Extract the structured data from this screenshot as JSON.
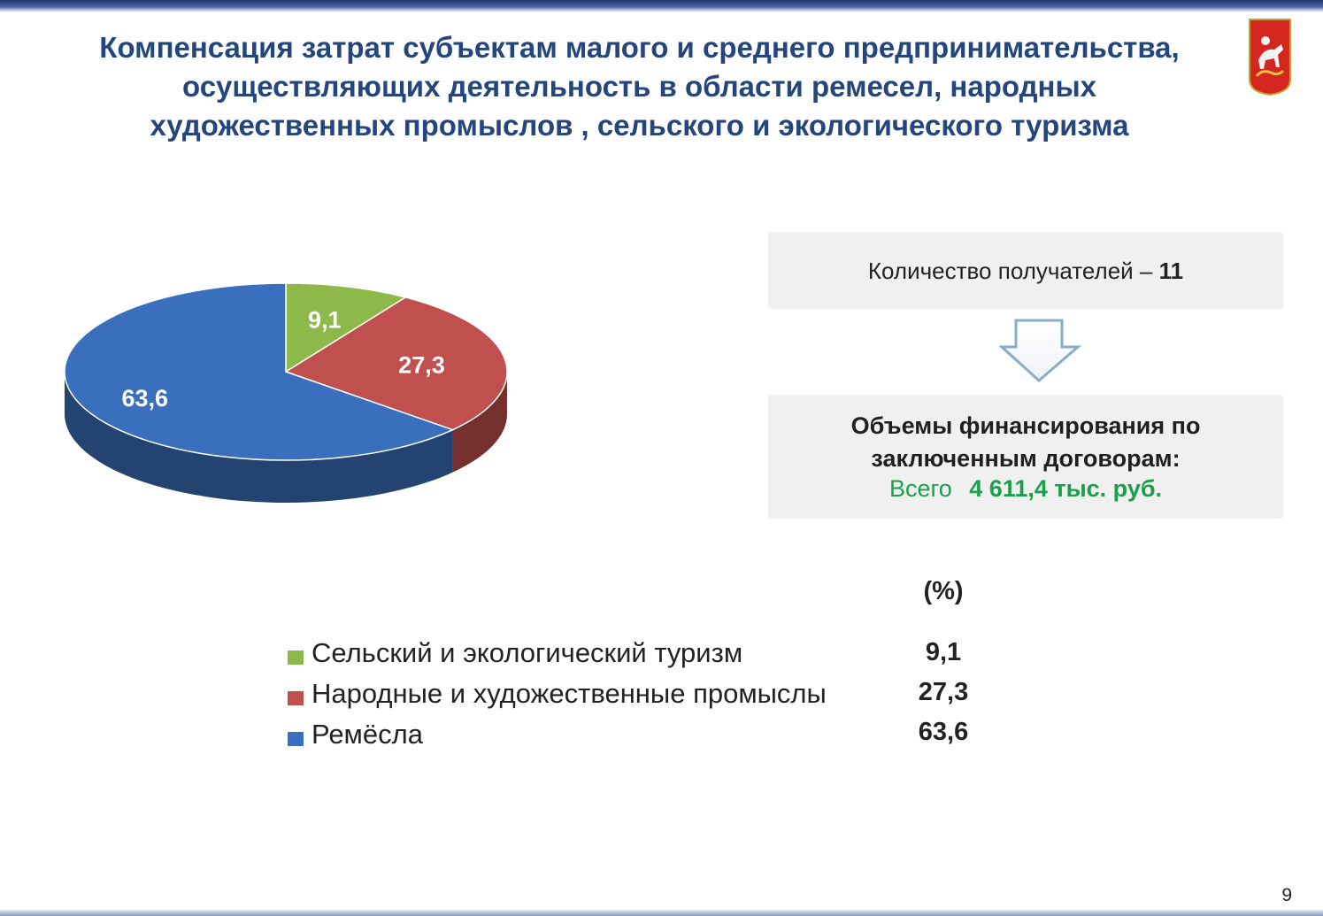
{
  "header": {
    "title_lines": [
      "Компенсация затрат субъектам малого и среднего предпринимательства,",
      "осуществляющих деятельность в области ремесел, народных",
      "художественных промыслов , сельского и экологического туризма"
    ]
  },
  "chart_data": {
    "type": "pie",
    "style": "3d",
    "title": "",
    "unit": "(%)",
    "categories": [
      "Сельский и экологический туризм",
      "Народные и художественные промыслы",
      "Ремёсла"
    ],
    "values": [
      9.1,
      27.3,
      63.6
    ],
    "value_labels": [
      "9,1",
      "27,3",
      "63,6"
    ],
    "colors": [
      "#8db84a",
      "#c0504d",
      "#3a6fbd"
    ],
    "legend_position": "bottom"
  },
  "info": {
    "recipients_label": "Количество получателей –",
    "recipients_value": "11",
    "funding_title_lines": [
      "Объемы финансирования по",
      "заключенным договорам:"
    ],
    "funding_total_label": "Всего",
    "funding_total_value": "4 611,4 тыс. руб.",
    "accent_color": "#1aa04a"
  },
  "legend": {
    "unit": "(%)",
    "items": [
      {
        "label": "Сельский и экологический туризм",
        "value": "9,1",
        "color": "#8db84a"
      },
      {
        "label": "Народные и художественные промыслы",
        "value": "27,3",
        "color": "#c0504d"
      },
      {
        "label": "Ремёсла",
        "value": "63,6",
        "color": "#3a6fbd"
      }
    ]
  },
  "footer": {
    "page_number": "9"
  }
}
